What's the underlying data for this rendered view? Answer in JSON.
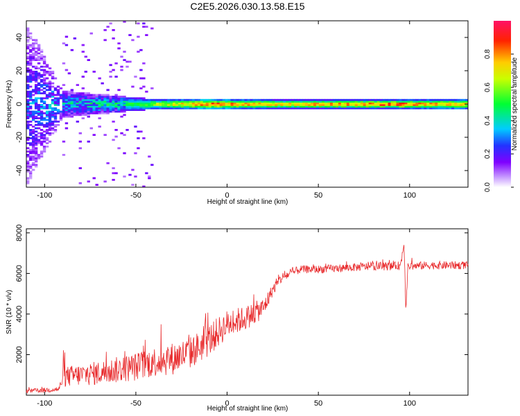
{
  "title": "C2E5.2026.030.13.58.E15",
  "chart_data": [
    {
      "type": "heatmap",
      "name": "spectrogram",
      "xlabel": "Height of straight line (km)",
      "ylabel": "Frequency (Hz)",
      "xlim": [
        -110,
        132
      ],
      "ylim": [
        -50,
        50
      ],
      "xticks": [
        -100,
        -50,
        0,
        50,
        100
      ],
      "yticks": [
        -40,
        -20,
        0,
        20,
        40
      ],
      "colorbar": {
        "label": "Normalized spectral amplitude",
        "range": [
          0.0,
          1.0
        ],
        "ticks": [
          0.0,
          0.2,
          0.4,
          0.6,
          0.8
        ]
      },
      "profile": [
        {
          "x": -110,
          "band_halfwidth": 50,
          "peak": 0.25
        },
        {
          "x": -90,
          "band_halfwidth": 8,
          "peak": 0.35
        },
        {
          "x": -60,
          "band_halfwidth": 5,
          "peak": 0.45
        },
        {
          "x": -40,
          "band_halfwidth": 3,
          "peak": 0.65
        },
        {
          "x": -10,
          "band_halfwidth": 3,
          "peak": 0.9
        },
        {
          "x": 30,
          "band_halfwidth": 2.5,
          "peak": 0.8
        },
        {
          "x": 90,
          "band_halfwidth": 2.5,
          "peak": 0.95
        },
        {
          "x": 132,
          "band_halfwidth": 3,
          "peak": 0.75
        }
      ]
    },
    {
      "type": "line",
      "name": "snr",
      "xlabel": "Height of straight line (km)",
      "ylabel": "SNR (10 * v/v)",
      "xlim": [
        -110,
        132
      ],
      "ylim": [
        0,
        8200
      ],
      "xticks": [
        -100,
        -50,
        0,
        50,
        100
      ],
      "yticks": [
        2000,
        4000,
        6000,
        8000
      ],
      "color": "#e8292b",
      "x": [
        -110,
        -100,
        -92,
        -90,
        -80,
        -70,
        -60,
        -50,
        -40,
        -30,
        -20,
        -10,
        0,
        10,
        20,
        25,
        30,
        40,
        50,
        60,
        70,
        80,
        90,
        95,
        97,
        98,
        99,
        100,
        110,
        120,
        132
      ],
      "y": [
        200,
        250,
        300,
        900,
        1000,
        1100,
        1250,
        1400,
        1650,
        1800,
        2100,
        2700,
        3500,
        3800,
        4300,
        5200,
        5800,
        6200,
        6200,
        6250,
        6300,
        6350,
        6350,
        6400,
        7500,
        4200,
        6300,
        6350,
        6400,
        6400,
        6400
      ],
      "noise": [
        100,
        120,
        150,
        500,
        550,
        600,
        650,
        700,
        750,
        800,
        800,
        800,
        700,
        600,
        500,
        300,
        250,
        200,
        200,
        200,
        200,
        200,
        200,
        200,
        300,
        300,
        200,
        200,
        200,
        200,
        200
      ]
    }
  ]
}
